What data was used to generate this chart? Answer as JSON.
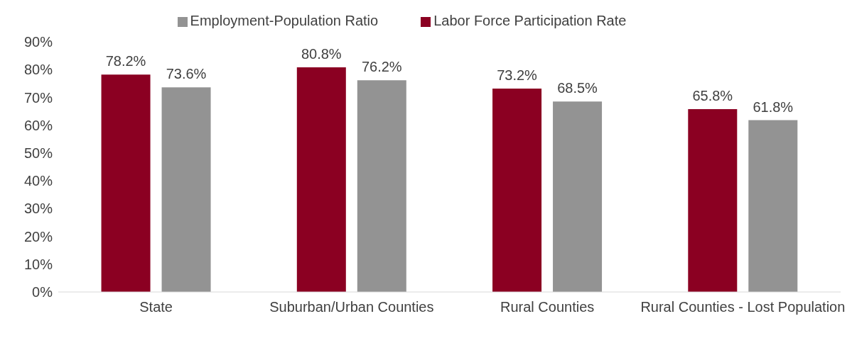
{
  "chart_data": {
    "type": "bar",
    "categories": [
      "State",
      "Suburban/Urban Counties",
      "Rural Counties",
      "Rural Counties - Lost Population"
    ],
    "series": [
      {
        "name": "Labor Force Participation Rate",
        "color": "#8b0022",
        "values": [
          78.2,
          80.8,
          73.2,
          65.8
        ],
        "value_labels": [
          "78.2%",
          "80.8%",
          "73.2%",
          "65.8%"
        ]
      },
      {
        "name": "Employment-Population Ratio",
        "color": "#939393",
        "values": [
          73.6,
          76.2,
          68.5,
          61.8
        ],
        "value_labels": [
          "73.6%",
          "76.2%",
          "68.5%",
          "61.8%"
        ]
      }
    ],
    "ylim": [
      0,
      90
    ],
    "yticks": [
      {
        "value": 0,
        "label": "0%"
      },
      {
        "value": 10,
        "label": "10%"
      },
      {
        "value": 20,
        "label": "20%"
      },
      {
        "value": 30,
        "label": "30%"
      },
      {
        "value": 40,
        "label": "40%"
      },
      {
        "value": 50,
        "label": "50%"
      },
      {
        "value": 60,
        "label": "60%"
      },
      {
        "value": 70,
        "label": "70%"
      },
      {
        "value": 80,
        "label": "80%"
      },
      {
        "value": 90,
        "label": "90%"
      }
    ],
    "grid": false,
    "legend": "top"
  }
}
